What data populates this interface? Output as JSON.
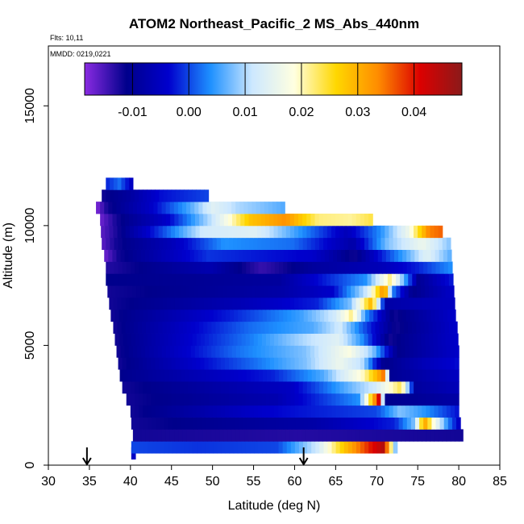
{
  "chart_data": {
    "type": "heatmap",
    "title": "ATOM2 Northeast_Pacific_2 MS_Abs_440nm",
    "flights_note": "Flts: 10,11",
    "date_note": "MMDD: 0219,0221",
    "xlabel": "Latitude (deg N)",
    "ylabel": "Altitude (m)",
    "xlim": [
      30,
      85
    ],
    "ylim": [
      0,
      17500
    ],
    "xticks": [
      "30",
      "35",
      "40",
      "45",
      "50",
      "55",
      "60",
      "65",
      "70",
      "75",
      "80",
      "85"
    ],
    "yticks": [
      "0",
      "5000",
      "10000",
      "15000"
    ],
    "colorbar": {
      "range": [
        -0.0185,
        0.0485
      ],
      "ticks": [
        "-0.01",
        "0.00",
        "0.01",
        "0.02",
        "0.03",
        "0.04"
      ],
      "colors": [
        "#8a2be2",
        "#00008b",
        "#0000cd",
        "#1e90ff",
        "#cde8ff",
        "#ffffe0",
        "#ffd700",
        "#ff8c00",
        "#dc0000",
        "#8b1a1a"
      ]
    },
    "arrows": [
      {
        "latitude": 34.7
      },
      {
        "latitude": 61.1
      }
    ],
    "rows": [
      {
        "alt": 500,
        "x0": 40.1,
        "x1": 40.6,
        "stops": [
          [
            0,
            -0.005
          ],
          [
            1,
            -0.004
          ]
        ]
      },
      {
        "alt": 750,
        "x0": 40.1,
        "x1": 72.5,
        "stops": [
          [
            0,
            0.0
          ],
          [
            0.25,
            -0.001
          ],
          [
            0.55,
            0.0
          ],
          [
            0.7,
            0.012
          ],
          [
            0.8,
            0.028
          ],
          [
            0.9,
            0.04
          ],
          [
            0.95,
            0.045
          ],
          [
            1,
            0.002
          ]
        ]
      },
      {
        "alt": 1250,
        "x0": 40.3,
        "x1": 80.5,
        "stops": [
          [
            0,
            -0.012
          ],
          [
            0.5,
            -0.013
          ],
          [
            1,
            -0.012
          ]
        ]
      },
      {
        "alt": 1750,
        "x0": 40.1,
        "x1": 80.2,
        "stops": [
          [
            0,
            -0.012
          ],
          [
            0.55,
            -0.008
          ],
          [
            0.8,
            -0.002
          ],
          [
            0.86,
            0.008
          ],
          [
            0.89,
            0.032
          ],
          [
            0.92,
            0.018
          ],
          [
            0.96,
            0.004
          ],
          [
            1,
            -0.006
          ]
        ]
      },
      {
        "alt": 2250,
        "x0": 40.0,
        "x1": 80.0,
        "stops": [
          [
            0,
            -0.012
          ],
          [
            0.4,
            -0.004
          ],
          [
            0.75,
            0.0
          ],
          [
            0.82,
            0.008
          ],
          [
            0.9,
            0.004
          ],
          [
            1,
            -0.003
          ]
        ]
      },
      {
        "alt": 2750,
        "x0": 39.5,
        "x1": 80.0,
        "stops": [
          [
            0,
            -0.012
          ],
          [
            0.45,
            -0.007
          ],
          [
            0.7,
            0.004
          ],
          [
            0.73,
            0.022
          ],
          [
            0.76,
            0.042
          ],
          [
            0.78,
            -0.011
          ],
          [
            1,
            -0.008
          ]
        ]
      },
      {
        "alt": 3250,
        "x0": 39.0,
        "x1": 80.0,
        "stops": [
          [
            0,
            -0.012
          ],
          [
            0.5,
            -0.005
          ],
          [
            0.75,
            0.012
          ],
          [
            0.83,
            0.024
          ],
          [
            0.87,
            -0.009
          ],
          [
            1,
            -0.006
          ]
        ]
      },
      {
        "alt": 3750,
        "x0": 38.7,
        "x1": 80.0,
        "stops": [
          [
            0,
            -0.011
          ],
          [
            0.45,
            -0.002
          ],
          [
            0.6,
            0.006
          ],
          [
            0.72,
            0.02
          ],
          [
            0.78,
            0.035
          ],
          [
            0.8,
            -0.01
          ],
          [
            1,
            -0.005
          ]
        ]
      },
      {
        "alt": 4250,
        "x0": 38.5,
        "x1": 80.0,
        "stops": [
          [
            0,
            -0.012
          ],
          [
            0.4,
            0.002
          ],
          [
            0.55,
            0.008
          ],
          [
            0.65,
            0.016
          ],
          [
            0.72,
            0.01
          ],
          [
            0.78,
            -0.011
          ],
          [
            0.9,
            -0.006
          ],
          [
            1,
            -0.003
          ]
        ]
      },
      {
        "alt": 4750,
        "x0": 38.3,
        "x1": 80.0,
        "stops": [
          [
            0,
            -0.012
          ],
          [
            0.35,
            0.002
          ],
          [
            0.55,
            0.008
          ],
          [
            0.68,
            0.018
          ],
          [
            0.75,
            0.008
          ],
          [
            0.82,
            -0.011
          ],
          [
            1,
            -0.004
          ]
        ]
      },
      {
        "alt": 5250,
        "x0": 38.1,
        "x1": 79.9,
        "stops": [
          [
            0,
            -0.012
          ],
          [
            0.4,
            0.003
          ],
          [
            0.55,
            0.01
          ],
          [
            0.65,
            0.014
          ],
          [
            0.72,
            0.004
          ],
          [
            0.8,
            -0.012
          ],
          [
            1,
            -0.004
          ]
        ]
      },
      {
        "alt": 5750,
        "x0": 37.9,
        "x1": 79.8,
        "stops": [
          [
            0,
            -0.012
          ],
          [
            0.4,
            0.002
          ],
          [
            0.58,
            0.006
          ],
          [
            0.66,
            0.012
          ],
          [
            0.72,
            0.002
          ],
          [
            0.82,
            -0.012
          ],
          [
            1,
            -0.004
          ]
        ]
      },
      {
        "alt": 6250,
        "x0": 37.6,
        "x1": 79.6,
        "stops": [
          [
            0,
            -0.012
          ],
          [
            0.35,
            -0.002
          ],
          [
            0.55,
            0.005
          ],
          [
            0.65,
            0.012
          ],
          [
            0.7,
            0.022
          ],
          [
            0.74,
            0.004
          ],
          [
            0.82,
            -0.012
          ],
          [
            1,
            -0.004
          ]
        ]
      },
      {
        "alt": 6750,
        "x0": 37.4,
        "x1": 79.5,
        "stops": [
          [
            0,
            -0.012
          ],
          [
            0.4,
            -0.006
          ],
          [
            0.6,
            -0.002
          ],
          [
            0.7,
            0.008
          ],
          [
            0.76,
            0.03
          ],
          [
            0.8,
            -0.008
          ],
          [
            1,
            -0.005
          ]
        ]
      },
      {
        "alt": 7250,
        "x0": 37.2,
        "x1": 79.4,
        "stops": [
          [
            0,
            -0.012
          ],
          [
            0.5,
            -0.008
          ],
          [
            0.65,
            -0.004
          ],
          [
            0.75,
            0.012
          ],
          [
            0.8,
            0.035
          ],
          [
            0.82,
            0.004
          ],
          [
            0.88,
            -0.011
          ],
          [
            1,
            -0.004
          ]
        ]
      },
      {
        "alt": 7750,
        "x0": 37.0,
        "x1": 79.3,
        "stops": [
          [
            0,
            -0.011
          ],
          [
            0.5,
            -0.009
          ],
          [
            0.75,
            0.004
          ],
          [
            0.82,
            0.022
          ],
          [
            0.86,
            0.006
          ],
          [
            0.9,
            -0.01
          ],
          [
            1,
            -0.002
          ]
        ]
      },
      {
        "alt": 8250,
        "x0": 37.0,
        "x1": 79.2,
        "stops": [
          [
            0,
            -0.013
          ],
          [
            0.3,
            -0.007
          ],
          [
            0.45,
            -0.014
          ],
          [
            0.6,
            -0.009
          ],
          [
            0.8,
            -0.006
          ],
          [
            0.9,
            -0.002
          ],
          [
            1,
            0.004
          ]
        ]
      },
      {
        "alt": 8750,
        "x0": 36.8,
        "x1": 79.1,
        "stops": [
          [
            0,
            -0.017
          ],
          [
            0.04,
            -0.012
          ],
          [
            0.3,
            -0.001
          ],
          [
            0.6,
            -0.004
          ],
          [
            0.72,
            -0.012
          ],
          [
            0.8,
            -0.002
          ],
          [
            0.87,
            0.006
          ],
          [
            0.93,
            0.014
          ],
          [
            1,
            0.006
          ]
        ]
      },
      {
        "alt": 9250,
        "x0": 36.5,
        "x1": 79.0,
        "stops": [
          [
            0,
            -0.016
          ],
          [
            0.04,
            -0.012
          ],
          [
            0.2,
            -0.006
          ],
          [
            0.35,
            0.004
          ],
          [
            0.55,
            0.002
          ],
          [
            0.72,
            -0.008
          ],
          [
            0.82,
            0.008
          ],
          [
            0.92,
            0.016
          ],
          [
            1,
            0.008
          ]
        ]
      },
      {
        "alt": 9750,
        "x0": 36.4,
        "x1": 78.0,
        "stops": [
          [
            0,
            -0.016
          ],
          [
            0.05,
            -0.012
          ],
          [
            0.18,
            0.0
          ],
          [
            0.3,
            0.012
          ],
          [
            0.45,
            0.014
          ],
          [
            0.6,
            0.003
          ],
          [
            0.72,
            -0.006
          ],
          [
            0.82,
            0.004
          ],
          [
            0.9,
            0.016
          ],
          [
            0.96,
            0.034
          ],
          [
            1,
            0.036
          ]
        ]
      },
      {
        "alt": 10250,
        "x0": 36.3,
        "x1": 69.5,
        "stops": [
          [
            0,
            -0.017
          ],
          [
            0.06,
            -0.012
          ],
          [
            0.25,
            -0.004
          ],
          [
            0.42,
            0.012
          ],
          [
            0.55,
            0.028
          ],
          [
            0.68,
            0.033
          ],
          [
            0.8,
            0.022
          ],
          [
            0.92,
            0.021
          ],
          [
            1,
            0.024
          ]
        ]
      },
      {
        "alt": 10750,
        "x0": 35.8,
        "x1": 58.8,
        "stops": [
          [
            0,
            -0.018
          ],
          [
            0.06,
            -0.012
          ],
          [
            0.28,
            -0.005
          ],
          [
            0.5,
            0.006
          ],
          [
            0.62,
            0.014
          ],
          [
            0.75,
            0.01
          ],
          [
            0.88,
            0.008
          ],
          [
            1,
            0.006
          ]
        ]
      },
      {
        "alt": 11250,
        "x0": 36.5,
        "x1": 49.5,
        "stops": [
          [
            0,
            -0.012
          ],
          [
            0.25,
            -0.009
          ],
          [
            0.55,
            -0.003
          ],
          [
            1,
            0.0
          ]
        ]
      },
      {
        "alt": 11750,
        "x0": 37.0,
        "x1": 40.3,
        "stops": [
          [
            0,
            -0.002
          ],
          [
            0.5,
            0.002
          ],
          [
            1,
            -0.006
          ]
        ]
      }
    ]
  }
}
